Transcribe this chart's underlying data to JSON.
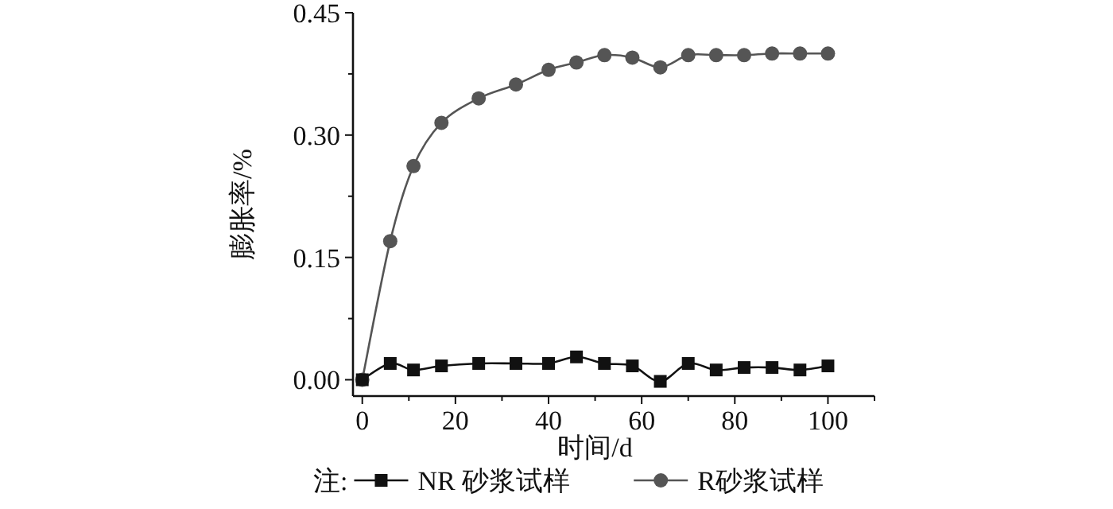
{
  "chart_data": {
    "type": "line",
    "xlabel": "时间/d",
    "ylabel": "膨胀率/%",
    "legend_title": "注:",
    "legend": "bottom",
    "line_style": "solid",
    "xlim": [
      -2,
      110
    ],
    "ylim": [
      -0.02,
      0.45
    ],
    "xticks": [
      0,
      {
        "value": 10,
        "label": null
      },
      20,
      {
        "value": 30,
        "label": null
      },
      40,
      {
        "value": 50,
        "label": null
      },
      60,
      {
        "value": 70,
        "label": null
      },
      80,
      {
        "value": 90,
        "label": null
      },
      100,
      {
        "value": 110,
        "label": null
      }
    ],
    "yticks": [
      {
        "value": 0,
        "label": "0.00"
      },
      {
        "value": 0.075,
        "label": null
      },
      {
        "value": 0.15,
        "label": "0.15"
      },
      {
        "value": 0.225,
        "label": null
      },
      {
        "value": 0.3,
        "label": "0.30"
      },
      {
        "value": 0.375,
        "label": null
      },
      {
        "value": 0.45,
        "label": "0.45"
      }
    ],
    "x": [
      0,
      6,
      11,
      17,
      25,
      33,
      40,
      46,
      52,
      58,
      64,
      70,
      76,
      82,
      88,
      94,
      100
    ],
    "series": [
      {
        "name": "NR 砂浆试样",
        "color": "#111111",
        "marker": "square",
        "values": [
          0,
          0.02,
          0.012,
          0.017,
          0.02,
          0.02,
          0.02,
          0.028,
          0.02,
          0.017,
          -0.002,
          0.02,
          0.012,
          0.015,
          0.015,
          0.012,
          0.017
        ]
      },
      {
        "name": "R砂浆试样",
        "color": "#555555",
        "marker": "circle",
        "values": [
          0,
          0.17,
          0.262,
          0.315,
          0.345,
          0.362,
          0.38,
          0.389,
          0.398,
          0.395,
          0.383,
          0.398,
          0.398,
          0.398,
          0.4,
          0.4,
          0.4
        ]
      }
    ]
  }
}
